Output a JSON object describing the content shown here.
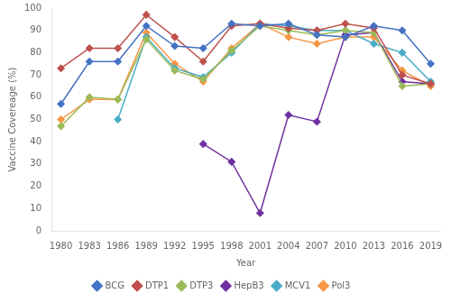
{
  "chart_data": {
    "type": "line",
    "xlabel": "Year",
    "ylabel": "Vaccine Covereage (%)",
    "x": [
      1980,
      1983,
      1986,
      1989,
      1992,
      1995,
      1998,
      2001,
      2004,
      2007,
      2010,
      2013,
      2016,
      2019
    ],
    "series": [
      {
        "name": "BCG",
        "color": "#4472C4",
        "marker": "diamond",
        "values": [
          57,
          76,
          76,
          92,
          83,
          82,
          93,
          92,
          93,
          88,
          87,
          92,
          90,
          75
        ]
      },
      {
        "name": "DTP1",
        "color": "#C0504D",
        "marker": "diamond",
        "values": [
          73,
          82,
          82,
          97,
          87,
          76,
          92,
          93,
          91,
          90,
          93,
          91,
          70,
          66
        ]
      },
      {
        "name": "DTP3",
        "color": "#9BBB59",
        "marker": "diamond",
        "values": [
          47,
          60,
          59,
          86,
          72,
          68,
          81,
          92,
          90,
          88,
          90,
          89,
          65,
          66
        ]
      },
      {
        "name": "HepB3",
        "color": "#7030A0",
        "marker": "diamond",
        "values": [
          null,
          null,
          null,
          null,
          null,
          39,
          31,
          8,
          52,
          49,
          88,
          89,
          67,
          66
        ]
      },
      {
        "name": "MCV1",
        "color": "#4BACC6",
        "marker": "diamond",
        "values": [
          null,
          null,
          50,
          87,
          73,
          69,
          80,
          93,
          92,
          90,
          90,
          84,
          80,
          67
        ]
      },
      {
        "name": "Pol3",
        "color": "#F79646",
        "marker": "diamond",
        "values": [
          50,
          59,
          59,
          89,
          75,
          67,
          82,
          93,
          87,
          84,
          87,
          87,
          72,
          65
        ]
      }
    ],
    "xlim": [
      1979,
      2020
    ],
    "xticks": [
      1980,
      1983,
      1986,
      1989,
      1992,
      1995,
      1998,
      2001,
      2004,
      2007,
      2010,
      2013,
      2016,
      2019
    ],
    "ylim": [
      0,
      100
    ],
    "yticks": [
      0,
      10,
      20,
      30,
      40,
      50,
      60,
      70,
      80,
      90,
      100
    ],
    "grid": false,
    "legend": "bottom"
  }
}
